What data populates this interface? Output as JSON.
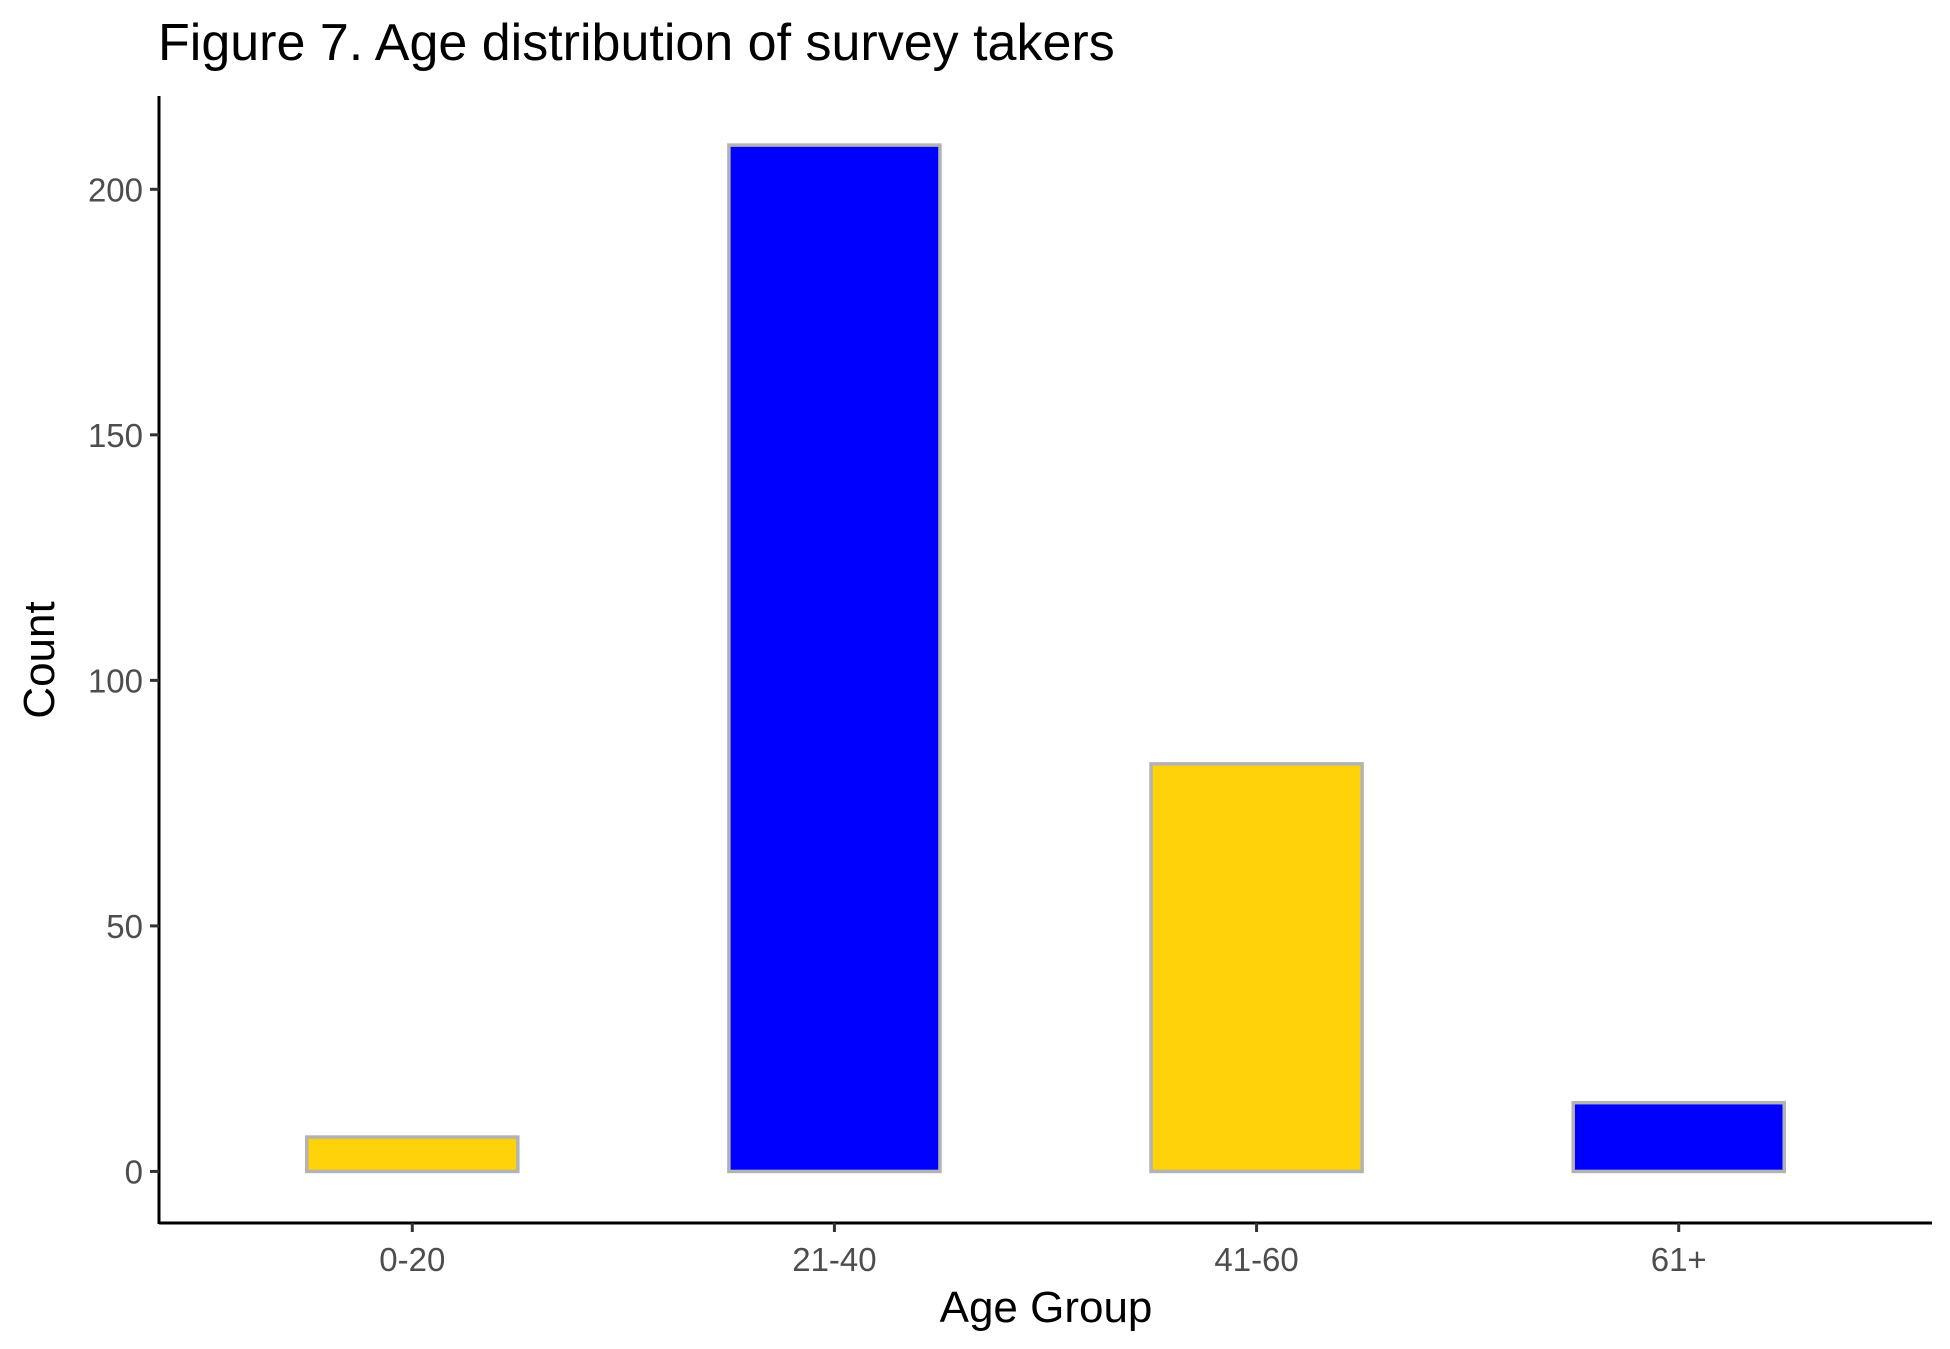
{
  "chart_data": {
    "type": "bar",
    "title": "Figure 7. Age distribution of survey takers",
    "xlabel": "Age Group",
    "ylabel": "Count",
    "categories": [
      "0-20",
      "21-40",
      "41-60",
      "61+"
    ],
    "values": [
      7,
      209,
      83,
      14
    ],
    "bar_colors": [
      "#FFD20A",
      "#0000FF",
      "#FFD20A",
      "#0000FF"
    ],
    "bar_outline_color": "#B3B3B3",
    "ylim": [
      -10.5,
      219
    ],
    "yticks": [
      0,
      50,
      100,
      150,
      200
    ],
    "ytick_labels": [
      "0",
      "50",
      "100",
      "150",
      "200"
    ],
    "grid": false,
    "legend": "none"
  }
}
